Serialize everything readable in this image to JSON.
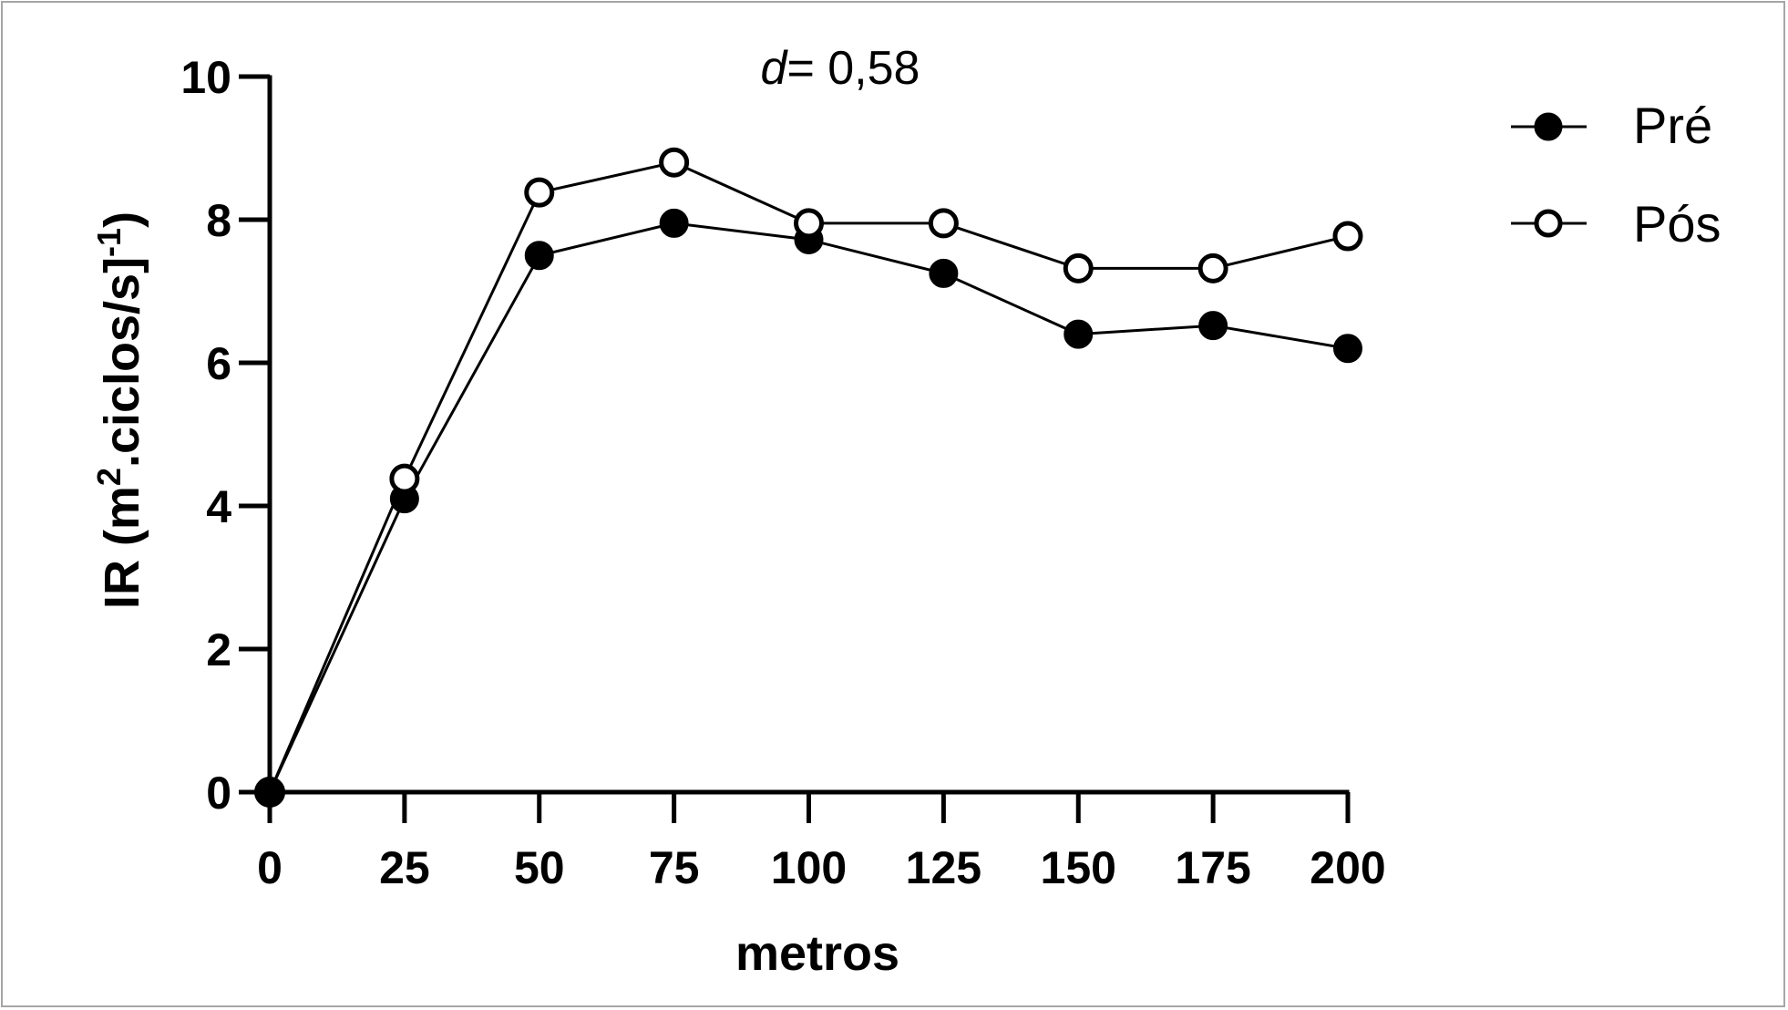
{
  "chart_data": {
    "type": "line",
    "annotation": {
      "prefix": "d",
      "text": "= 0,58"
    },
    "xlabel": "metros",
    "ylabel": {
      "main": "IR (m",
      "sup1": "2",
      "mid": ".ciclos/s]",
      "sup2": "-1",
      "end": ")"
    },
    "x": [
      0,
      25,
      50,
      75,
      100,
      125,
      150,
      175,
      200
    ],
    "xticks": [
      "0",
      "25",
      "50",
      "75",
      "100",
      "125",
      "150",
      "175",
      "200"
    ],
    "xlim": [
      0,
      200
    ],
    "ylim": [
      0,
      10
    ],
    "yticks": [
      "0",
      "2",
      "4",
      "6",
      "8",
      "10"
    ],
    "series": [
      {
        "name": "Pré",
        "marker": "filled",
        "values": [
          0,
          4.1,
          7.5,
          7.95,
          7.72,
          7.25,
          6.4,
          6.52,
          6.2
        ]
      },
      {
        "name": "Pós",
        "marker": "open",
        "values": [
          0,
          4.38,
          8.38,
          8.8,
          7.95,
          7.95,
          7.32,
          7.32,
          7.77
        ]
      }
    ],
    "legend_position": "top-right",
    "colors": {
      "line": "#000000",
      "marker_fill": "#000000",
      "open_fill": "#ffffff",
      "frame": "#a6a6a6"
    }
  }
}
